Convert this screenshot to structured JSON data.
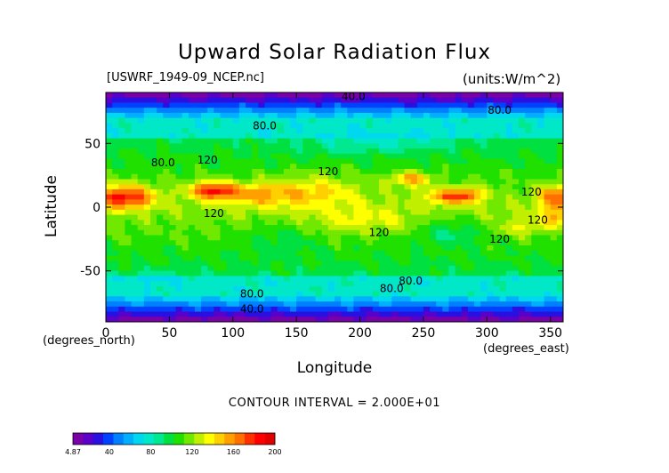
{
  "chart_data": {
    "type": "heatmap",
    "title": "Upward Solar Radiation Flux",
    "file_label": "[USWRF_1949-09_NCEP.nc]",
    "units_label": "(units:W/m^2)",
    "xlabel": "Longitude",
    "ylabel": "Latitude",
    "x_unit": "(degrees_east)",
    "y_unit": "(degrees_north)",
    "xlim": [
      0,
      360
    ],
    "ylim": [
      -90,
      90
    ],
    "x_ticks": [
      0,
      50,
      100,
      150,
      200,
      250,
      300,
      350
    ],
    "y_ticks": [
      -50,
      0,
      50
    ],
    "contour_interval_note": "CONTOUR INTERVAL = 2.000E+01",
    "contour_labels": [
      {
        "text": "40.0",
        "lon": 195,
        "lat": 87
      },
      {
        "text": "80.0",
        "lon": 310,
        "lat": 76
      },
      {
        "text": "80.0",
        "lon": 125,
        "lat": 64
      },
      {
        "text": "80.0",
        "lon": 45,
        "lat": 35
      },
      {
        "text": "120",
        "lon": 80,
        "lat": 37
      },
      {
        "text": "120",
        "lon": 175,
        "lat": 28
      },
      {
        "text": "120",
        "lon": 335,
        "lat": 12
      },
      {
        "text": "120",
        "lon": 85,
        "lat": -5
      },
      {
        "text": "120",
        "lon": 215,
        "lat": -20
      },
      {
        "text": "120",
        "lon": 340,
        "lat": -10
      },
      {
        "text": "120",
        "lon": 310,
        "lat": -25
      },
      {
        "text": "80.0",
        "lon": 115,
        "lat": -68
      },
      {
        "text": "80.0",
        "lon": 225,
        "lat": -64
      },
      {
        "text": "80.0",
        "lon": 240,
        "lat": -58
      },
      {
        "text": "40.0",
        "lon": 115,
        "lat": -80
      }
    ],
    "color_scale": {
      "min": 4.87,
      "max": 200,
      "tick_labels": [
        "4.87",
        "40",
        "80",
        "120",
        "160",
        "200"
      ],
      "colors": [
        "#7a00a8",
        "#5a00c8",
        "#2a10e0",
        "#0040ff",
        "#0080ff",
        "#00b0ff",
        "#00d8f0",
        "#00e8c8",
        "#00e890",
        "#00e040",
        "#20e000",
        "#70e800",
        "#c0f000",
        "#ffff00",
        "#ffd000",
        "#ffa000",
        "#ff7000",
        "#ff3000",
        "#ff0000",
        "#e00000"
      ]
    }
  }
}
